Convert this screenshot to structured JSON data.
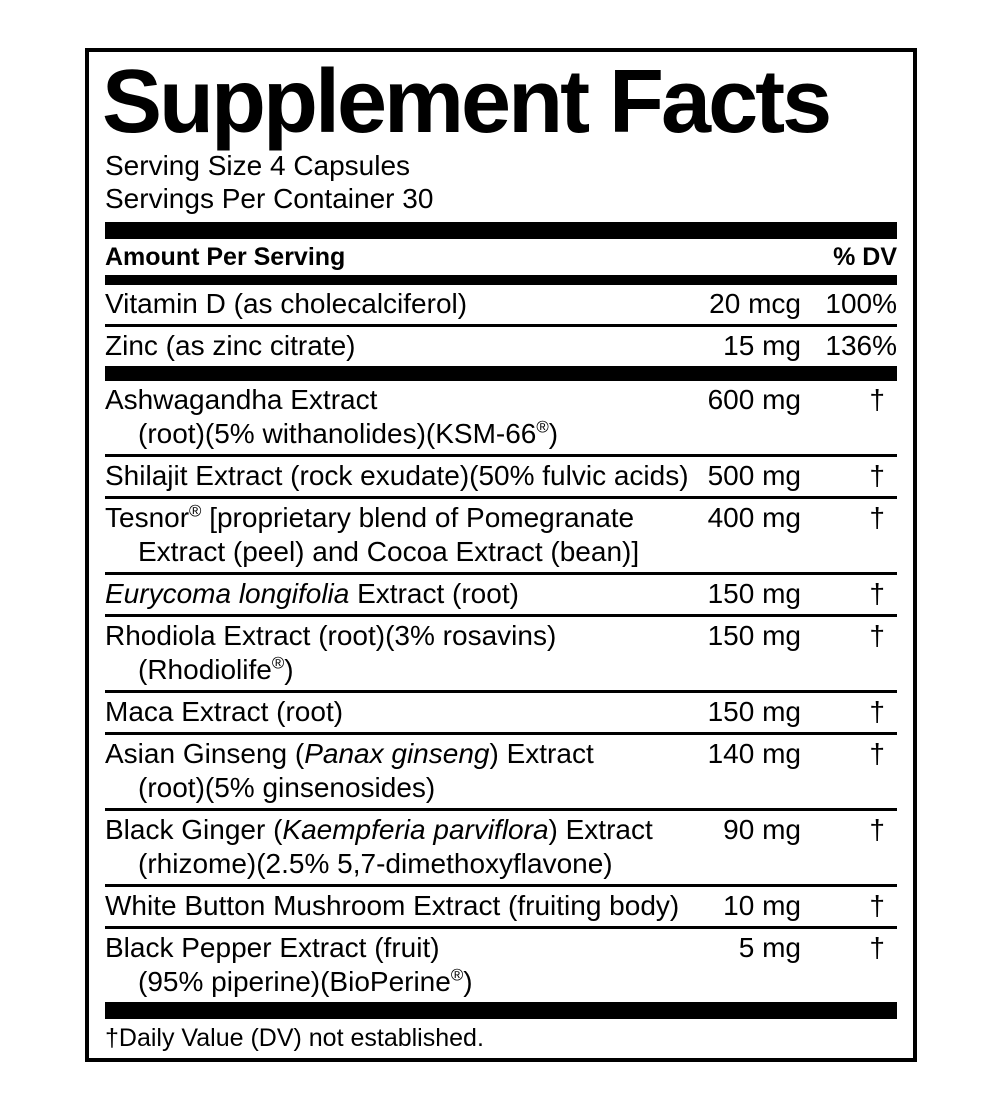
{
  "label": {
    "title": "Supplement Facts",
    "serving_size": "Serving Size 4 Capsules",
    "servings_per_container": "Servings Per Container 30",
    "columns": {
      "amount_header": "Amount Per Serving",
      "dv_header": "% DV"
    },
    "rows_top": [
      {
        "name": [
          {
            "t": "Vitamin D (as cholecalciferol)"
          }
        ],
        "amount": "20 mcg",
        "dv": "100%"
      },
      {
        "name": [
          {
            "t": "Zinc (as zinc citrate)"
          }
        ],
        "amount": "15 mg",
        "dv": "136%"
      }
    ],
    "rows_main": [
      {
        "name": [
          {
            "t": "Ashwagandha Extract"
          }
        ],
        "name2": [
          {
            "t": "(root)(5% withanolides)(KSM-66"
          },
          {
            "t": "®",
            "sup": true
          },
          {
            "t": ")"
          }
        ],
        "amount": "600 mg",
        "dv": "†"
      },
      {
        "name": [
          {
            "t": "Shilajit Extract (rock exudate)(50% fulvic acids)"
          }
        ],
        "amount": "500 mg",
        "dv": "†"
      },
      {
        "name": [
          {
            "t": "Tesnor"
          },
          {
            "t": "®",
            "sup": true
          },
          {
            "t": " [proprietary blend of Pomegranate"
          }
        ],
        "name2": [
          {
            "t": "Extract (peel) and Cocoa Extract (bean)]"
          }
        ],
        "amount": "400 mg",
        "dv": "†"
      },
      {
        "name": [
          {
            "t": "Eurycoma longifolia",
            "i": true
          },
          {
            "t": " Extract (root)"
          }
        ],
        "amount": "150 mg",
        "dv": "†"
      },
      {
        "name": [
          {
            "t": "Rhodiola Extract (root)(3% rosavins)"
          }
        ],
        "name2": [
          {
            "t": "(Rhodiolife"
          },
          {
            "t": "®",
            "sup": true
          },
          {
            "t": ")"
          }
        ],
        "amount": "150 mg",
        "dv": "†"
      },
      {
        "name": [
          {
            "t": "Maca Extract (root)"
          }
        ],
        "amount": "150 mg",
        "dv": "†"
      },
      {
        "name": [
          {
            "t": "Asian Ginseng ("
          },
          {
            "t": "Panax ginseng",
            "i": true
          },
          {
            "t": ") Extract"
          }
        ],
        "name2": [
          {
            "t": "(root)(5% ginsenosides)"
          }
        ],
        "amount": "140 mg",
        "dv": "†"
      },
      {
        "name": [
          {
            "t": "Black Ginger ("
          },
          {
            "t": "Kaempferia parviflora",
            "i": true
          },
          {
            "t": ") Extract"
          }
        ],
        "name2": [
          {
            "t": "(rhizome)(2.5% 5,7-dimethoxyflavone)"
          }
        ],
        "amount": "90 mg",
        "dv": "†"
      },
      {
        "name": [
          {
            "t": "White Button Mushroom Extract (fruiting body)"
          }
        ],
        "amount": "10 mg",
        "dv": "†"
      },
      {
        "name": [
          {
            "t": "Black Pepper Extract (fruit)"
          }
        ],
        "name2": [
          {
            "t": "(95% piperine)(BioPerine"
          },
          {
            "t": "®",
            "sup": true
          },
          {
            "t": ")"
          }
        ],
        "amount": "5 mg",
        "dv": "†"
      }
    ],
    "footnote": "†Daily Value (DV) not established.",
    "colors": {
      "ink": "#000000",
      "paper": "#ffffff"
    }
  }
}
